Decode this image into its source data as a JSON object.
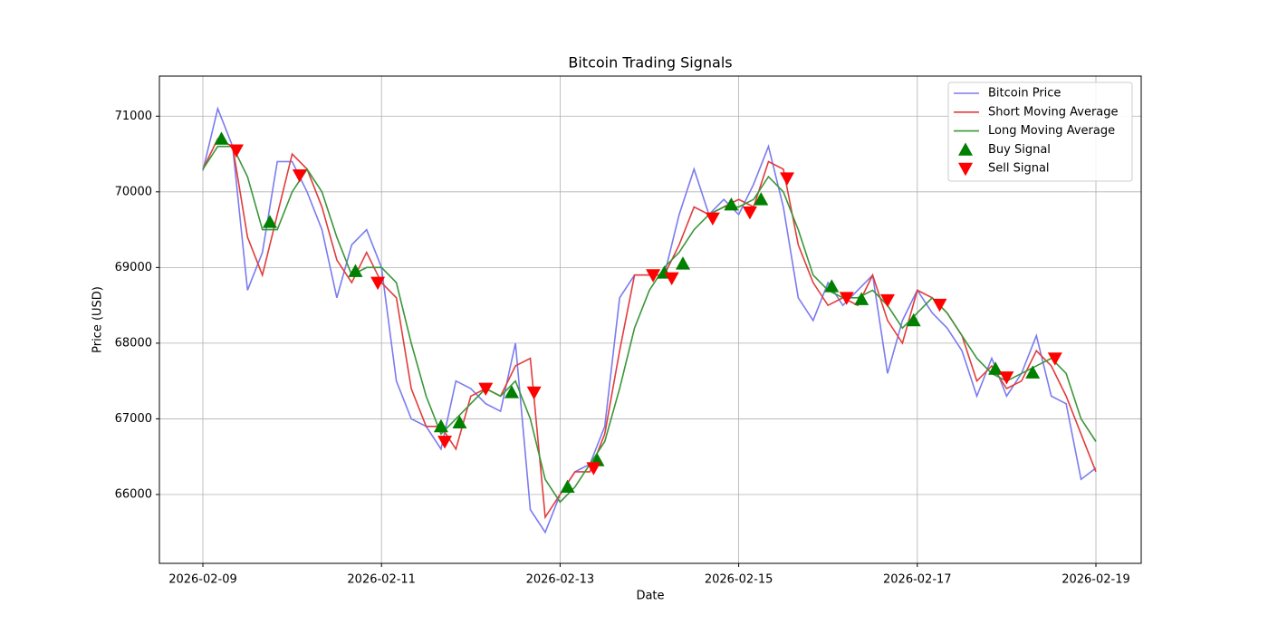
{
  "chart_data": {
    "type": "line",
    "title": "Bitcoin Trading Signals",
    "xlabel": "Date",
    "ylabel": "Price (USD)",
    "x": [
      "2026-02-09T00:00",
      "2026-02-09T04:00",
      "2026-02-09T08:00",
      "2026-02-09T12:00",
      "2026-02-09T16:00",
      "2026-02-09T20:00",
      "2026-02-10T00:00",
      "2026-02-10T04:00",
      "2026-02-10T08:00",
      "2026-02-10T12:00",
      "2026-02-10T16:00",
      "2026-02-10T20:00",
      "2026-02-11T00:00",
      "2026-02-11T04:00",
      "2026-02-11T08:00",
      "2026-02-11T12:00",
      "2026-02-11T16:00",
      "2026-02-11T20:00",
      "2026-02-12T00:00",
      "2026-02-12T04:00",
      "2026-02-12T08:00",
      "2026-02-12T12:00",
      "2026-02-12T16:00",
      "2026-02-12T20:00",
      "2026-02-13T00:00",
      "2026-02-13T04:00",
      "2026-02-13T08:00",
      "2026-02-13T12:00",
      "2026-02-13T16:00",
      "2026-02-13T20:00",
      "2026-02-14T00:00",
      "2026-02-14T04:00",
      "2026-02-14T08:00",
      "2026-02-14T12:00",
      "2026-02-14T16:00",
      "2026-02-14T20:00",
      "2026-02-15T00:00",
      "2026-02-15T04:00",
      "2026-02-15T08:00",
      "2026-02-15T12:00",
      "2026-02-15T16:00",
      "2026-02-15T20:00",
      "2026-02-16T00:00",
      "2026-02-16T04:00",
      "2026-02-16T08:00",
      "2026-02-16T12:00",
      "2026-02-16T16:00",
      "2026-02-16T20:00",
      "2026-02-17T00:00",
      "2026-02-17T04:00",
      "2026-02-17T08:00",
      "2026-02-17T12:00",
      "2026-02-17T16:00",
      "2026-02-17T20:00",
      "2026-02-18T00:00",
      "2026-02-18T04:00",
      "2026-02-18T08:00",
      "2026-02-18T12:00",
      "2026-02-18T16:00",
      "2026-02-18T20:00",
      "2026-02-19T00:00"
    ],
    "series": [
      {
        "name": "Bitcoin Price",
        "kind": "line",
        "color": "#7b7bef",
        "values": [
          70280,
          71100,
          70600,
          68700,
          69200,
          70400,
          70400,
          70000,
          69500,
          68600,
          69300,
          69500,
          69000,
          67500,
          67000,
          66900,
          66600,
          67500,
          67400,
          67200,
          67100,
          68000,
          65800,
          65500,
          66000,
          66300,
          66400,
          66900,
          68600,
          68900,
          68900,
          68900,
          69700,
          70300,
          69700,
          69900,
          69700,
          70100,
          70600,
          69800,
          68600,
          68300,
          68800,
          68500,
          68700,
          68900,
          67600,
          68300,
          68700,
          68400,
          68200,
          67900,
          67300,
          67800,
          67300,
          67600,
          68100,
          67300,
          67200,
          66200,
          66350
        ]
      },
      {
        "name": "Short Moving Average",
        "kind": "line",
        "color": "#e23c3c",
        "values": [
          70300,
          70700,
          70600,
          69400,
          68900,
          69700,
          70500,
          70300,
          69800,
          69100,
          68800,
          69200,
          68800,
          68600,
          67400,
          66900,
          66900,
          66600,
          67300,
          67400,
          67300,
          67700,
          67800,
          65700,
          66000,
          66300,
          66300,
          66800,
          67900,
          68900,
          68900,
          68900,
          69300,
          69800,
          69700,
          69800,
          69900,
          69800,
          70400,
          70300,
          69300,
          68800,
          68500,
          68600,
          68500,
          68900,
          68300,
          68000,
          68700,
          68600,
          68400,
          68100,
          67500,
          67700,
          67400,
          67500,
          67900,
          67700,
          67300,
          66800,
          66300
        ]
      },
      {
        "name": "Long Moving Average",
        "kind": "line",
        "color": "#3a963a",
        "values": [
          70300,
          70600,
          70600,
          70200,
          69500,
          69500,
          70000,
          70300,
          70000,
          69400,
          68900,
          69000,
          69000,
          68800,
          68000,
          67300,
          66800,
          67000,
          67200,
          67400,
          67300,
          67500,
          67000,
          66200,
          65900,
          66100,
          66400,
          66700,
          67400,
          68200,
          68700,
          69000,
          69200,
          69500,
          69700,
          69800,
          69800,
          69900,
          70200,
          70000,
          69500,
          68900,
          68700,
          68600,
          68600,
          68700,
          68500,
          68200,
          68400,
          68600,
          68400,
          68100,
          67800,
          67600,
          67500,
          67600,
          67700,
          67800,
          67600,
          67000,
          66700
        ]
      },
      {
        "name": "Buy Signal",
        "kind": "marker",
        "marker": "triangle-up",
        "color": "#008000",
        "x": [
          "2026-02-09T05:00",
          "2026-02-09T18:00",
          "2026-02-10T17:00",
          "2026-02-11T16:00",
          "2026-02-11T21:00",
          "2026-02-12T11:00",
          "2026-02-13T02:00",
          "2026-02-13T10:00",
          "2026-02-14T04:00",
          "2026-02-14T09:00",
          "2026-02-14T22:00",
          "2026-02-15T06:00",
          "2026-02-16T01:00",
          "2026-02-16T09:00",
          "2026-02-16T23:00",
          "2026-02-17T21:00",
          "2026-02-18T07:00"
        ],
        "values": [
          70700,
          69600,
          68950,
          66900,
          66950,
          67350,
          66100,
          66450,
          68930,
          69050,
          69830,
          69900,
          68750,
          68580,
          68300,
          67660,
          67610
        ]
      },
      {
        "name": "Sell Signal",
        "kind": "marker",
        "marker": "triangle-down",
        "color": "#ff0000",
        "x": [
          "2026-02-09T09:00",
          "2026-02-10T02:00",
          "2026-02-10T23:00",
          "2026-02-11T17:00",
          "2026-02-12T04:00",
          "2026-02-12T17:00",
          "2026-02-13T09:00",
          "2026-02-14T01:00",
          "2026-02-14T06:00",
          "2026-02-14T17:00",
          "2026-02-15T03:00",
          "2026-02-15T13:00",
          "2026-02-16T05:00",
          "2026-02-16T16:00",
          "2026-02-17T06:00",
          "2026-02-18T00:00",
          "2026-02-18T13:00"
        ],
        "values": [
          70550,
          70220,
          68800,
          66700,
          67400,
          67350,
          66350,
          68900,
          68860,
          69650,
          69730,
          70180,
          68600,
          68570,
          68510,
          67550,
          67800
        ]
      }
    ],
    "xlim": [
      "2026-02-08T12:19",
      "2026-02-19T12:10"
    ],
    "xticks": [
      "2026-02-09",
      "2026-02-11",
      "2026-02-13",
      "2026-02-15",
      "2026-02-17",
      "2026-02-19"
    ],
    "ylim": [
      65090,
      71530
    ],
    "yticks": [
      66000,
      67000,
      68000,
      69000,
      70000,
      71000
    ],
    "grid": true,
    "legend": "upper-right"
  }
}
